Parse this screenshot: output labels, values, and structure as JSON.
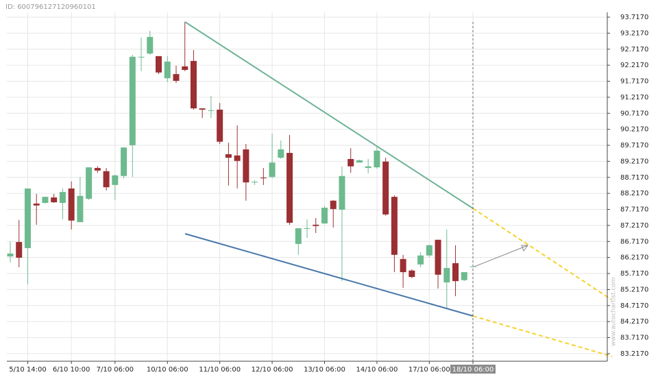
{
  "chart_data": {
    "type": "candlestick",
    "id_label": "ID: 600796127120960101",
    "watermark": "www.autochartist.com",
    "up_color": "#6dba8f",
    "down_color": "#9b2f33",
    "grid": true,
    "categories": [
      null,
      null,
      "5/10 14:00",
      null,
      null,
      null,
      null,
      "6/10 10:00",
      null,
      null,
      null,
      null,
      "7/10 06:00",
      null,
      null,
      null,
      null,
      null,
      "10/10 06:00",
      null,
      null,
      null,
      null,
      null,
      "11/10 06:00",
      null,
      null,
      null,
      null,
      null,
      "12/10 06:00",
      null,
      null,
      null,
      null,
      null,
      "13/10 06:00",
      null,
      null,
      null,
      null,
      null,
      "14/10 06:00",
      null,
      null,
      null,
      null,
      null,
      "17/10 06:00",
      null,
      null,
      null,
      null,
      "18/10 06:00"
    ],
    "open": [
      86.25,
      86.7,
      86.51,
      87.9,
      87.92,
      88.09,
      87.92,
      88.37,
      87.32,
      88.05,
      89.01,
      88.91,
      88.48,
      88.76,
      89.72,
      92.46,
      92.58,
      92.5,
      91.81,
      91.94,
      92.18,
      92.35,
      90.87,
      90.8,
      90.83,
      89.44,
      89.4,
      89.59,
      88.56,
      88.71,
      88.73,
      89.33,
      89.48,
      86.64,
      87.11,
      87.24,
      87.28,
      87.99,
      87.71,
      89.29,
      89.18,
      89.01,
      89.03,
      89.21,
      88.11,
      86.17,
      85.81,
      86.0,
      86.28,
      86.77,
      85.44,
      86.04,
      85.51,
      85.92
    ],
    "high": [
      86.72,
      87.39,
      88.37,
      88.2,
      88.11,
      88.2,
      88.37,
      88.59,
      88.73,
      89.03,
      89.06,
      89.01,
      88.8,
      89.65,
      92.54,
      93.08,
      93.29,
      92.5,
      92.5,
      92.2,
      93.57,
      92.69,
      90.87,
      91.26,
      91.04,
      89.8,
      90.34,
      89.76,
      88.63,
      89.01,
      90.08,
      89.87,
      90.04,
      87.13,
      87.41,
      87.45,
      87.82,
      88.01,
      89.06,
      89.63,
      89.27,
      89.29,
      89.7,
      89.33,
      88.16,
      86.3,
      85.85,
      86.38,
      86.62,
      86.77,
      87.09,
      86.6,
      85.76,
      85.95
    ],
    "low": [
      86.06,
      85.91,
      85.38,
      87.24,
      87.9,
      87.92,
      87.41,
      87.09,
      87.32,
      88.01,
      88.86,
      88.31,
      88.01,
      88.69,
      88.73,
      92.03,
      92.54,
      91.94,
      91.69,
      91.66,
      92.03,
      90.83,
      90.57,
      90.57,
      89.76,
      88.46,
      88.37,
      87.99,
      88.48,
      88.48,
      88.69,
      89.29,
      87.24,
      86.3,
      86.83,
      86.98,
      87.26,
      87.15,
      85.48,
      88.86,
      89.18,
      88.84,
      88.99,
      87.52,
      85.76,
      85.27,
      85.57,
      85.91,
      86.23,
      85.25,
      84.63,
      85.01,
      85.48,
      85.92
    ],
    "close": [
      86.34,
      86.21,
      88.37,
      87.84,
      88.11,
      87.94,
      88.26,
      87.37,
      88.14,
      89.03,
      88.93,
      88.41,
      88.78,
      89.65,
      92.48,
      92.48,
      93.1,
      91.99,
      92.33,
      91.73,
      92.07,
      90.87,
      90.83,
      90.81,
      89.83,
      89.33,
      89.23,
      88.56,
      88.58,
      88.69,
      89.18,
      89.59,
      87.3,
      87.13,
      87.13,
      87.2,
      87.77,
      87.73,
      88.76,
      89.06,
      89.25,
      89.06,
      89.55,
      87.56,
      86.3,
      85.76,
      85.61,
      86.28,
      86.6,
      85.68,
      85.89,
      85.48,
      85.76,
      85.94
    ],
    "ylim": [
      82.98,
      93.717
    ],
    "yticks": [
      {
        "value": 83.217,
        "label": "83.2170"
      },
      {
        "value": 83.717,
        "label": "83.7170"
      },
      {
        "value": 84.217,
        "label": "84.2170"
      },
      {
        "value": 84.717,
        "label": "84.7170"
      },
      {
        "value": 85.217,
        "label": "85.2170"
      },
      {
        "value": 85.717,
        "label": "85.7170"
      },
      {
        "value": 86.217,
        "label": "86.2170"
      },
      {
        "value": 86.717,
        "label": "86.7170"
      },
      {
        "value": 87.217,
        "label": "87.2170"
      },
      {
        "value": 87.717,
        "label": "87.7170"
      },
      {
        "value": 88.217,
        "label": "88.2170"
      },
      {
        "value": 88.717,
        "label": "88.7170"
      },
      {
        "value": 89.217,
        "label": "89.2170"
      },
      {
        "value": 89.717,
        "label": "89.7170"
      },
      {
        "value": 90.217,
        "label": "90.2170"
      },
      {
        "value": 90.717,
        "label": "90.7170"
      },
      {
        "value": 91.217,
        "label": "91.2170"
      },
      {
        "value": 91.717,
        "label": "91.7170"
      },
      {
        "value": 92.217,
        "label": "92.2170"
      },
      {
        "value": 92.717,
        "label": "92.7170"
      },
      {
        "value": 93.217,
        "label": "93.2170"
      },
      {
        "value": 93.717,
        "label": "93.7170"
      }
    ]
  }
}
